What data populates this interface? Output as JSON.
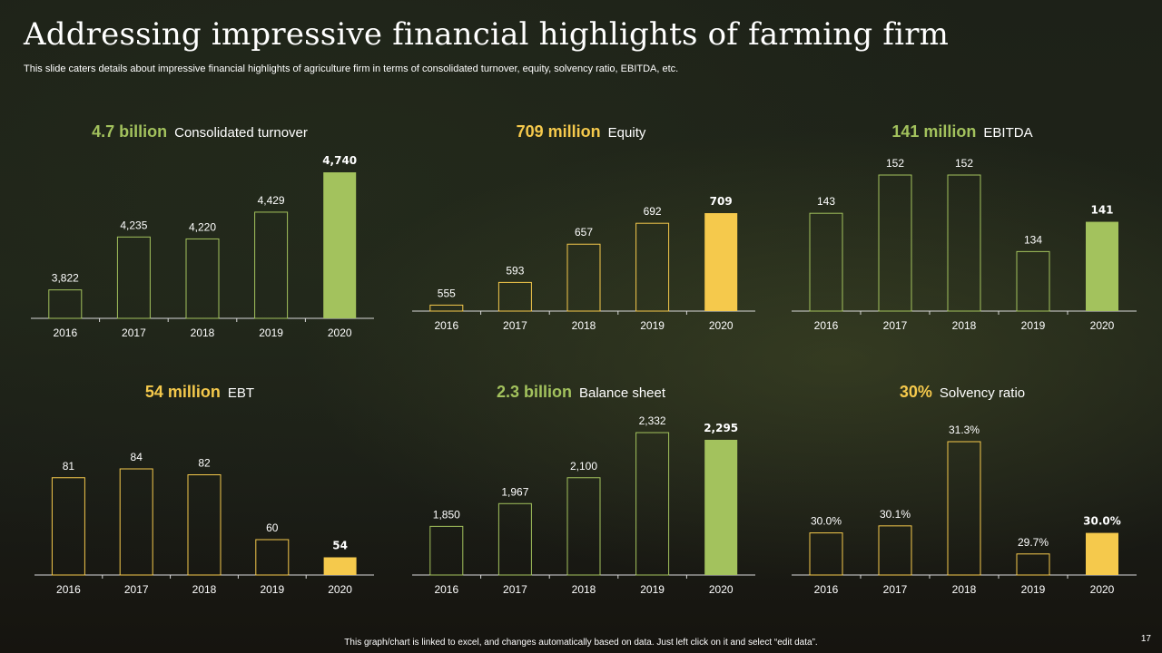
{
  "slide": {
    "title": "Addressing impressive financial highlights of farming firm",
    "subtitle": "This slide caters details about impressive financial highlights of agriculture firm in terms of consolidated turnover, equity, solvency ratio, EBITDA, etc.",
    "footer": "This graph/chart is linked to excel, and changes automatically based on data. Just left click on it and select “edit data”.",
    "page_number": "17"
  },
  "colors": {
    "green": "#a3c25d",
    "yellow": "#f5c94c",
    "baseline": "#d9d9d9"
  },
  "chart_data": [
    {
      "type": "bar",
      "headline_value": "4.7 billion",
      "headline_label": "Consolidated turnover",
      "accent": "green",
      "categories": [
        "2016",
        "2017",
        "2018",
        "2019",
        "2020"
      ],
      "values": [
        3822,
        4235,
        4220,
        4429,
        4740
      ],
      "labels": [
        "3,822",
        "4,235",
        "4,220",
        "4,429",
        "4,740"
      ],
      "highlight_index": 4
    },
    {
      "type": "bar",
      "headline_value": "709 million",
      "headline_label": "Equity",
      "accent": "yellow",
      "categories": [
        "2016",
        "2017",
        "2018",
        "2019",
        "2020"
      ],
      "values": [
        555,
        593,
        657,
        692,
        709
      ],
      "labels": [
        "555",
        "593",
        "657",
        "692",
        "709"
      ],
      "highlight_index": 4
    },
    {
      "type": "bar",
      "headline_value": "141 million",
      "headline_label": "EBITDA",
      "accent": "green",
      "categories": [
        "2016",
        "2017",
        "2018",
        "2019",
        "2020"
      ],
      "values": [
        143,
        152,
        152,
        134,
        141
      ],
      "labels": [
        "143",
        "152",
        "152",
        "134",
        "141"
      ],
      "highlight_index": 4
    },
    {
      "type": "bar",
      "headline_value": "54 million",
      "headline_label": "EBT",
      "accent": "yellow",
      "categories": [
        "2016",
        "2017",
        "2018",
        "2019",
        "2020"
      ],
      "values": [
        81,
        84,
        82,
        60,
        54
      ],
      "labels": [
        "81",
        "84",
        "82",
        "60",
        "54"
      ],
      "highlight_index": 4
    },
    {
      "type": "bar",
      "headline_value": "2.3 billion",
      "headline_label": "Balance sheet",
      "accent": "green",
      "categories": [
        "2016",
        "2017",
        "2018",
        "2019",
        "2020"
      ],
      "values": [
        1850,
        1967,
        2100,
        2332,
        2295
      ],
      "labels": [
        "1,850",
        "1,967",
        "2,100",
        "2,332",
        "2,295"
      ],
      "highlight_index": 4
    },
    {
      "type": "bar",
      "headline_value": "30%",
      "headline_label": "Solvency ratio",
      "accent": "yellow",
      "categories": [
        "2016",
        "2017",
        "2018",
        "2019",
        "2020"
      ],
      "values": [
        30.0,
        30.1,
        31.3,
        29.7,
        30.0
      ],
      "labels": [
        "30.0%",
        "30.1%",
        "31.3%",
        "29.7%",
        "30.0%"
      ],
      "highlight_index": 4
    }
  ]
}
